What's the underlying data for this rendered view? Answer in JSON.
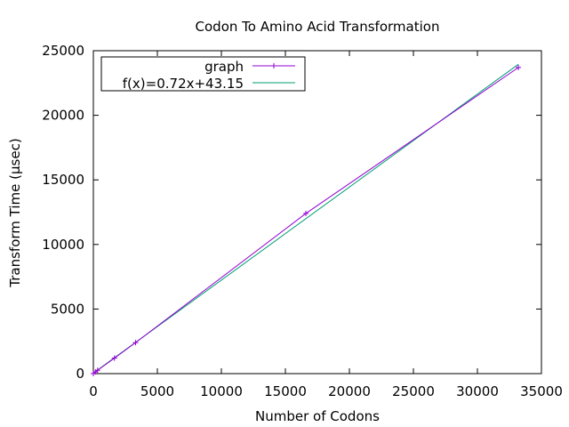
{
  "chart_data": {
    "type": "line",
    "title": "Codon To Amino Acid Transformation",
    "xlabel": "Number of Codons",
    "ylabel": "Transform Time (µsec)",
    "xlim": [
      0,
      35000
    ],
    "ylim": [
      0,
      25000
    ],
    "xticks": [
      0,
      5000,
      10000,
      15000,
      20000,
      25000,
      30000,
      35000
    ],
    "yticks": [
      0,
      5000,
      10000,
      15000,
      20000,
      25000
    ],
    "grid": false,
    "legend_position": "top-left",
    "series": [
      {
        "name": "graph",
        "color": "#9400d3",
        "marker": "plus",
        "x": [
          0,
          160,
          330,
          1650,
          3300,
          16600,
          33200
        ],
        "y": [
          0,
          130,
          260,
          1200,
          2400,
          12400,
          23700
        ]
      },
      {
        "name": "f(x)=0.72x+43.15",
        "color": "#009e73",
        "marker": "none",
        "fit": {
          "slope": 0.72,
          "intercept": 43.15
        },
        "x": [
          0,
          33200
        ]
      }
    ]
  }
}
